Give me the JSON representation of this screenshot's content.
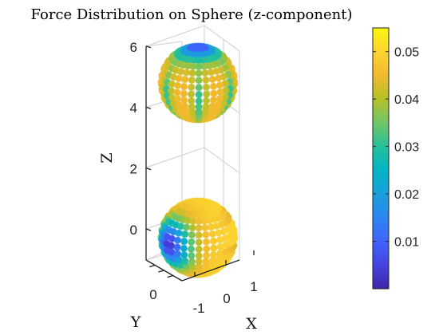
{
  "chart_data": {
    "type": "scatter",
    "subtype": "3d-scatter-colormapped",
    "title": "Force Distribution on Sphere (z-component)",
    "xlabel": "X",
    "ylabel": "Y",
    "zlabel": "Z",
    "xlim": [
      -1.5,
      1.5
    ],
    "ylim": [
      -1,
      1
    ],
    "zlim": [
      -1.3,
      6
    ],
    "x_ticks": [
      -1,
      0,
      1
    ],
    "x_tick_labels": [
      "-1",
      "0",
      "1"
    ],
    "y_ticks": [
      0
    ],
    "y_tick_labels": [
      "0"
    ],
    "z_ticks": [
      0,
      2,
      4,
      6
    ],
    "z_tick_labels": [
      "0",
      "2",
      "4",
      "6"
    ],
    "grid": true,
    "colormap": "parula",
    "colorbar": {
      "ticks": [
        0.01,
        0.02,
        0.03,
        0.04,
        0.05
      ],
      "tick_labels": [
        "0.01",
        "0.02",
        "0.03",
        "0.04",
        "0.05"
      ],
      "range": [
        0,
        0.055
      ]
    },
    "spheres": [
      {
        "center": [
          0,
          0,
          0
        ],
        "radius": 1
      },
      {
        "center": [
          0,
          0,
          5
        ],
        "radius": 1
      }
    ],
    "colors": {
      "parula": [
        "#3e26a8",
        "#4743e0",
        "#3f64fc",
        "#2c85f1",
        "#1aa0dc",
        "#00b5c4",
        "#27c09a",
        "#6fc567",
        "#b6c12a",
        "#f1ba2e",
        "#fcd430",
        "#f9f80d"
      ]
    }
  }
}
